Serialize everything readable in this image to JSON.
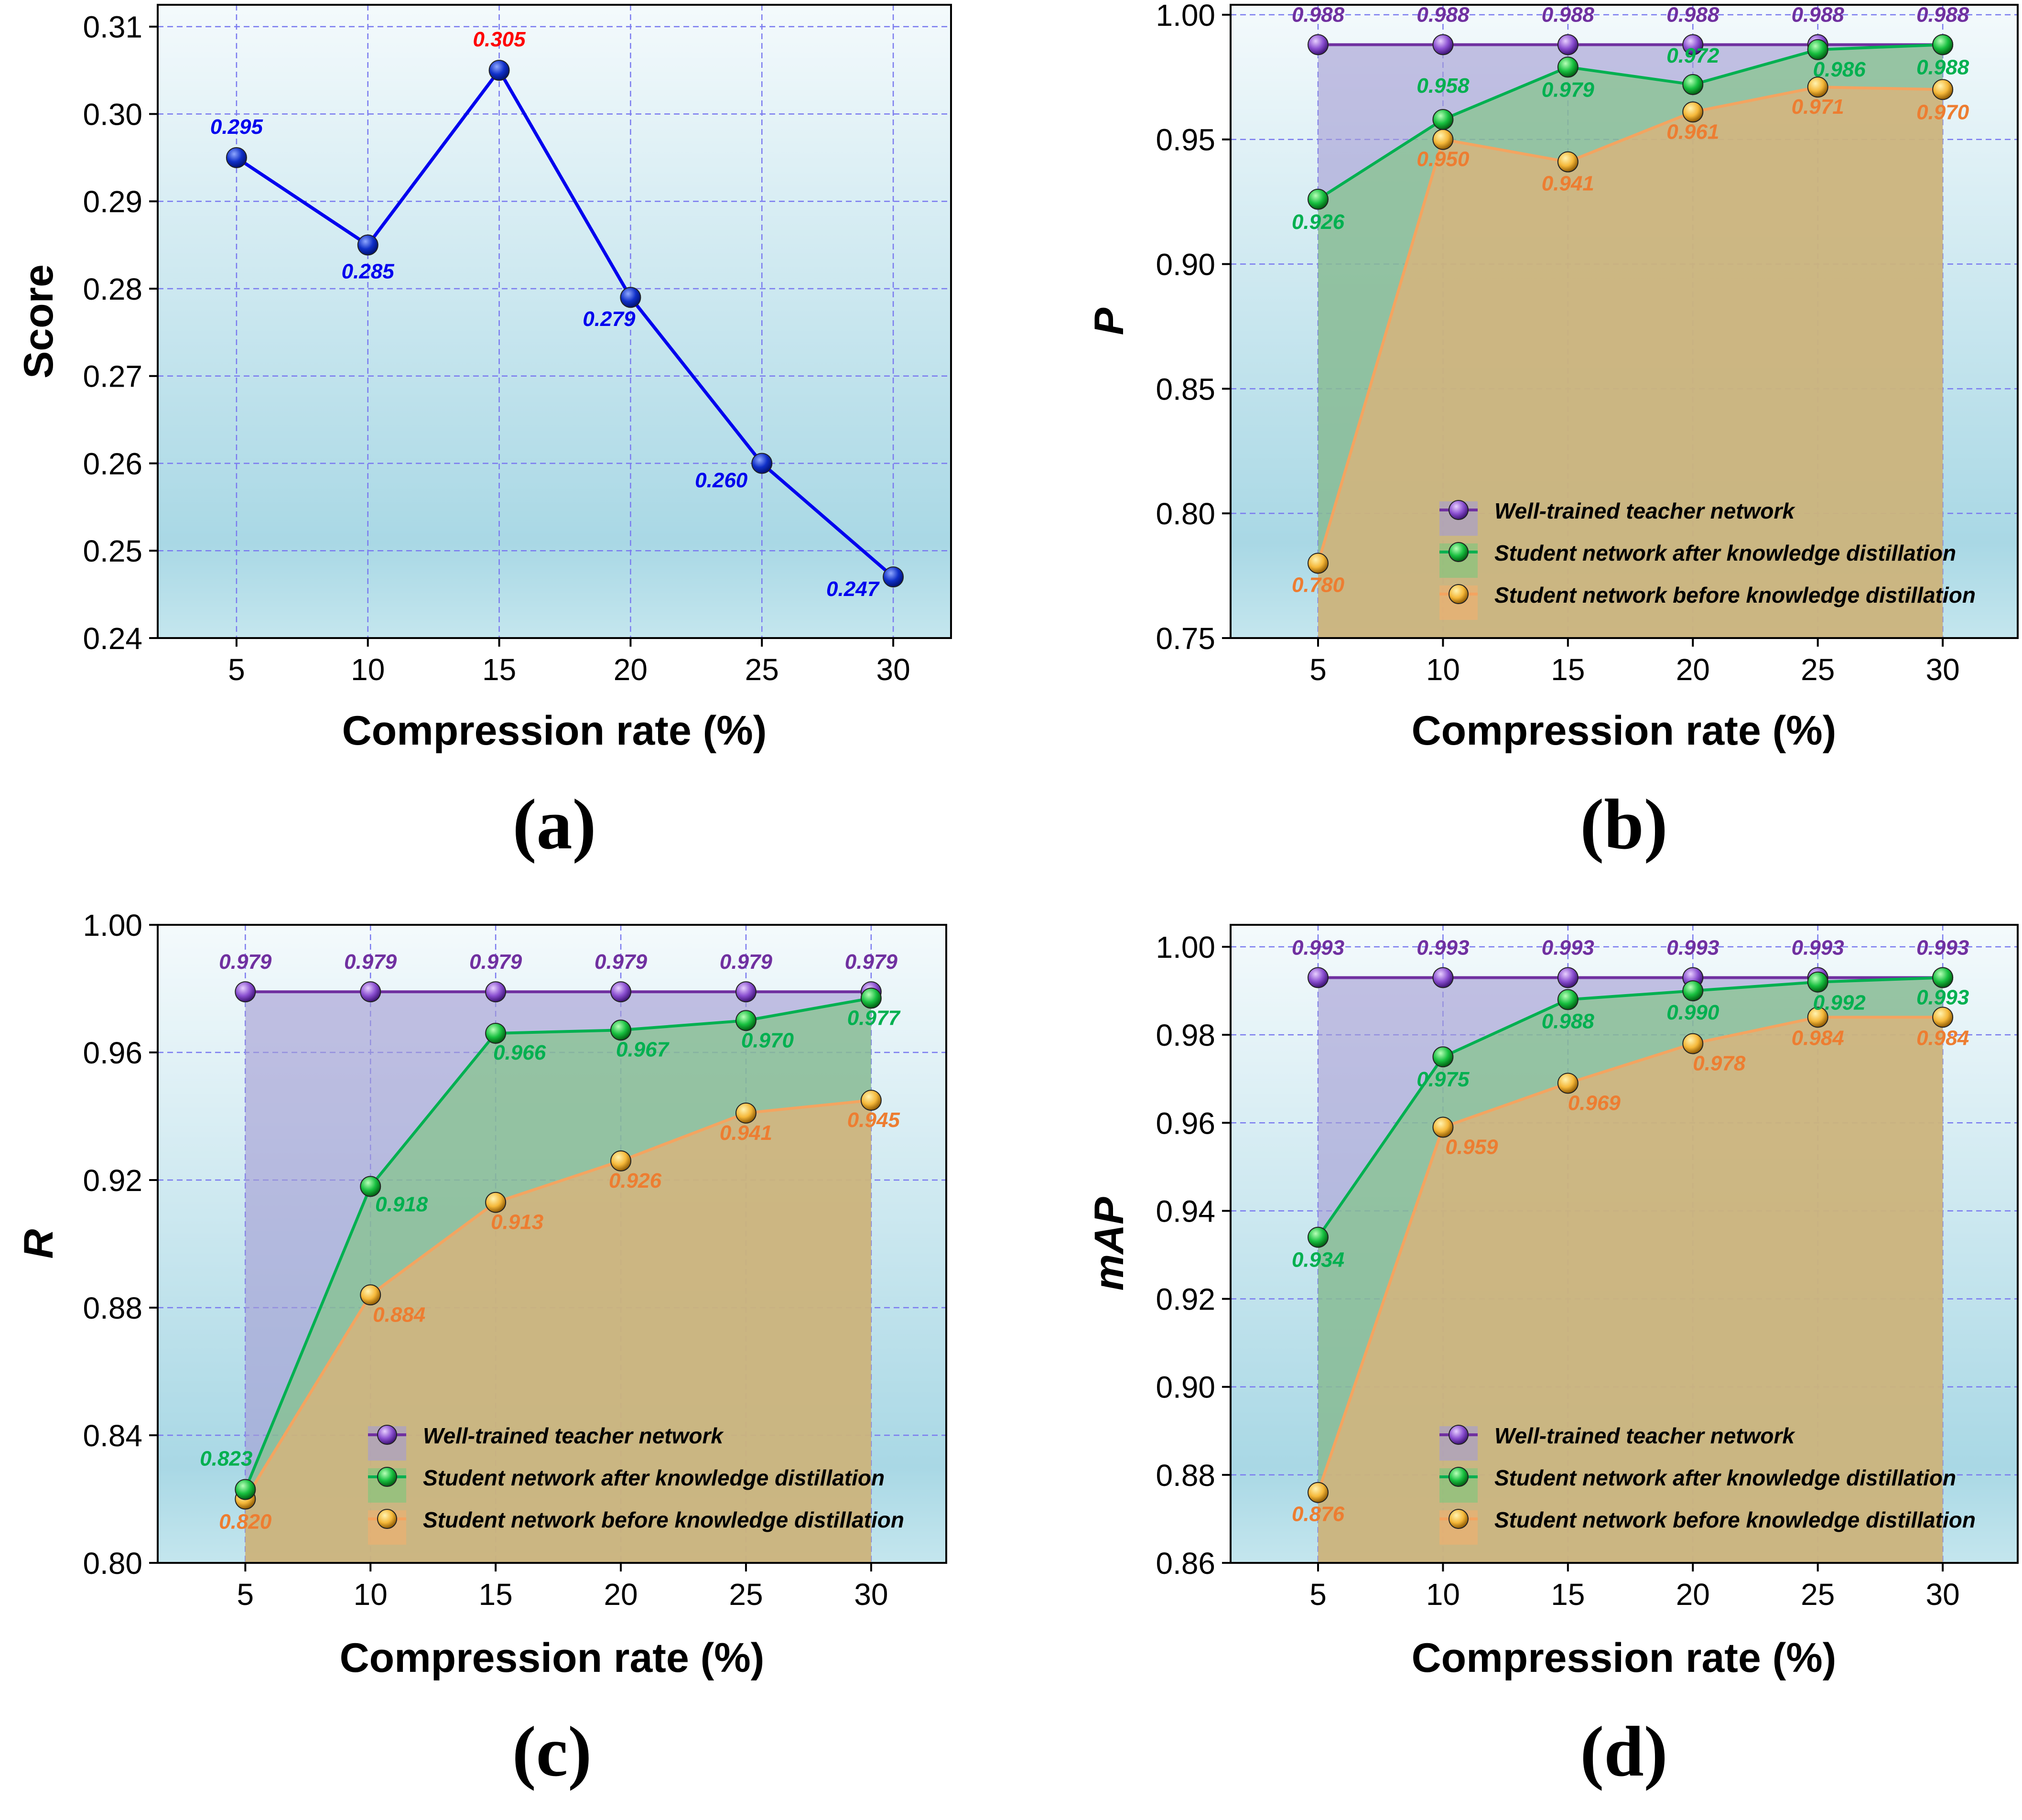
{
  "colors": {
    "teacher": "#7030A0",
    "after": "#00B050",
    "before": "#F4A460",
    "before_label": "#ED7D31",
    "score_line": "#0000EE",
    "highlight": "#FF0000",
    "grid": "#7B7BEF",
    "bg_top": "#F4FAFC",
    "bg_bottom": "#A9D8E5"
  },
  "chart_data": [
    {
      "id": "a",
      "type": "line",
      "panel_label": "(a)",
      "xlabel": "Compression rate (%)",
      "ylabel": "Score",
      "x": [
        5,
        10,
        15,
        20,
        25,
        30
      ],
      "xticks": [
        "5",
        "10",
        "15",
        "20",
        "25",
        "30"
      ],
      "ylim": [
        0.24,
        0.3125
      ],
      "yticks": [
        "0.24",
        "0.25",
        "0.26",
        "0.27",
        "0.28",
        "0.29",
        "0.30",
        "0.31"
      ],
      "grid": true,
      "series": [
        {
          "key": "score",
          "values": [
            0.295,
            0.285,
            0.305,
            0.279,
            0.26,
            0.247
          ],
          "labels": [
            "0.295",
            "0.285",
            "0.305",
            "0.279",
            "0.260",
            "0.247"
          ],
          "highlight_index": 2
        }
      ]
    },
    {
      "id": "b",
      "type": "area",
      "panel_label": "(b)",
      "xlabel": "Compression rate (%)",
      "ylabel": "P",
      "x": [
        5,
        10,
        15,
        20,
        25,
        30
      ],
      "xticks": [
        "5",
        "10",
        "15",
        "20",
        "25",
        "30"
      ],
      "ylim": [
        0.75,
        1.004
      ],
      "yticks": [
        "0.75",
        "0.80",
        "0.85",
        "0.90",
        "0.95",
        "1.00"
      ],
      "grid": true,
      "legend_position": "bottom-right",
      "series": [
        {
          "key": "teacher",
          "name": "Well-trained teacher network",
          "values": [
            0.988,
            0.988,
            0.988,
            0.988,
            0.988,
            0.988
          ],
          "labels": [
            "0.988",
            "0.988",
            "0.988",
            "0.988",
            "0.988",
            "0.988"
          ]
        },
        {
          "key": "after",
          "name": "Student network after knowledge distillation",
          "values": [
            0.926,
            0.958,
            0.979,
            0.972,
            0.986,
            0.988
          ],
          "labels": [
            "0.926",
            "0.958",
            "0.979",
            "0.972",
            "0.986",
            "0.988"
          ]
        },
        {
          "key": "before",
          "name": "Student network before knowledge distillation",
          "values": [
            0.78,
            0.95,
            0.941,
            0.961,
            0.971,
            0.97
          ],
          "labels": [
            "0.780",
            "0.950",
            "0.941",
            "0.961",
            "0.971",
            "0.970"
          ]
        }
      ]
    },
    {
      "id": "c",
      "type": "area",
      "panel_label": "(c)",
      "xlabel": "Compression rate (%)",
      "ylabel": "R",
      "x": [
        5,
        10,
        15,
        20,
        25,
        30
      ],
      "xticks": [
        "5",
        "10",
        "15",
        "20",
        "25",
        "30"
      ],
      "ylim": [
        0.8,
        1.0
      ],
      "yticks": [
        "0.80",
        "0.84",
        "0.88",
        "0.92",
        "0.96",
        "1.00"
      ],
      "grid": true,
      "legend_position": "bottom-right",
      "series": [
        {
          "key": "teacher",
          "name": "Well-trained teacher network",
          "values": [
            0.979,
            0.979,
            0.979,
            0.979,
            0.979,
            0.979
          ],
          "labels": [
            "0.979",
            "0.979",
            "0.979",
            "0.979",
            "0.979",
            "0.979"
          ]
        },
        {
          "key": "after",
          "name": "Student network after knowledge distillation",
          "values": [
            0.823,
            0.918,
            0.966,
            0.967,
            0.97,
            0.977
          ],
          "labels": [
            "0.823",
            "0.918",
            "0.966",
            "0.967",
            "0.970",
            "0.977"
          ]
        },
        {
          "key": "before",
          "name": "Student network before knowledge distillation",
          "values": [
            0.82,
            0.884,
            0.913,
            0.926,
            0.941,
            0.945
          ],
          "labels": [
            "0.820",
            "0.884",
            "0.913",
            "0.926",
            "0.941",
            "0.945"
          ]
        }
      ]
    },
    {
      "id": "d",
      "type": "area",
      "panel_label": "(d)",
      "xlabel": "Compression rate (%)",
      "ylabel": "mAP",
      "x": [
        5,
        10,
        15,
        20,
        25,
        30
      ],
      "xticks": [
        "5",
        "10",
        "15",
        "20",
        "25",
        "30"
      ],
      "ylim": [
        0.86,
        1.005
      ],
      "yticks": [
        "0.86",
        "0.88",
        "0.90",
        "0.92",
        "0.94",
        "0.96",
        "0.98",
        "1.00"
      ],
      "grid": true,
      "legend_position": "bottom-right",
      "series": [
        {
          "key": "teacher",
          "name": "Well-trained teacher network",
          "values": [
            0.993,
            0.993,
            0.993,
            0.993,
            0.993,
            0.993
          ],
          "labels": [
            "0.993",
            "0.993",
            "0.993",
            "0.993",
            "0.993",
            "0.993"
          ]
        },
        {
          "key": "after",
          "name": "Student network after knowledge distillation",
          "values": [
            0.934,
            0.975,
            0.988,
            0.99,
            0.992,
            0.993
          ],
          "labels": [
            "0.934",
            "0.975",
            "0.988",
            "0.990",
            "0.992",
            "0.993"
          ]
        },
        {
          "key": "before",
          "name": "Student network before knowledge distillation",
          "values": [
            0.876,
            0.959,
            0.969,
            0.978,
            0.984,
            0.984
          ],
          "labels": [
            "0.876",
            "0.959",
            "0.969",
            "0.978",
            "0.984",
            "0.984"
          ]
        }
      ]
    }
  ]
}
